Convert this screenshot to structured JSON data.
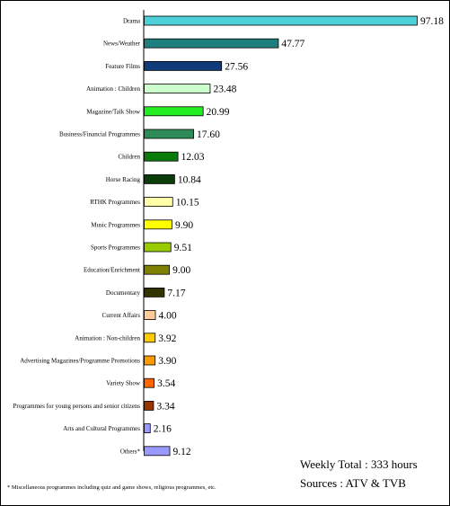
{
  "chart_data": {
    "type": "bar",
    "orientation": "horizontal",
    "categories": [
      "Drama",
      "News/Weather",
      "Feature Films",
      "Animation : Children",
      "Magazine/Talk Show",
      "Business/Financial Programmes",
      "Children",
      "Horse Racing",
      "RTHK Programmes",
      "Music Programmes",
      "Sports Programmes",
      "Education/Enrichment",
      "Documentary",
      "Current Affairs",
      "Animation : Non-children",
      "Advertising Magazines/Programme Promotions",
      "Variety Show",
      "Programmes for young persons and senior citizens",
      "Arts and Cultural Programmes",
      "Others*"
    ],
    "values": [
      97.18,
      47.77,
      27.56,
      23.48,
      20.99,
      17.6,
      12.03,
      10.84,
      10.15,
      9.9,
      9.51,
      9.0,
      7.17,
      4.0,
      3.92,
      3.9,
      3.54,
      3.34,
      2.16,
      9.12
    ],
    "value_labels": [
      "97.18",
      "47.77",
      "27.56",
      "23.48",
      "20.99",
      "17.60",
      "12.03",
      "10.84",
      "10.15",
      "9.90",
      "9.51",
      "9.00",
      "7.17",
      "4.00",
      "3.92",
      "3.90",
      "3.54",
      "3.34",
      "2.16",
      "9.12"
    ],
    "colors": [
      "#4dd0d8",
      "#1f7f7f",
      "#0f3b7a",
      "#ccffcc",
      "#22ee22",
      "#2e8b57",
      "#0a7a0a",
      "#0b3d0b",
      "#ffffaa",
      "#ffff00",
      "#99cc00",
      "#808000",
      "#333300",
      "#ffcc99",
      "#ffcc00",
      "#ff9900",
      "#ff6600",
      "#993300",
      "#9999ff",
      "#9999ff"
    ],
    "xlim": [
      0,
      97.18
    ],
    "grid": false,
    "legend": "none"
  },
  "notes": {
    "total": "Weekly Total : 333 hours",
    "source": "Sources : ATV & TVB",
    "footnote": "* Miscellaneous programmes including quiz and game shows, religious programmes, etc."
  }
}
